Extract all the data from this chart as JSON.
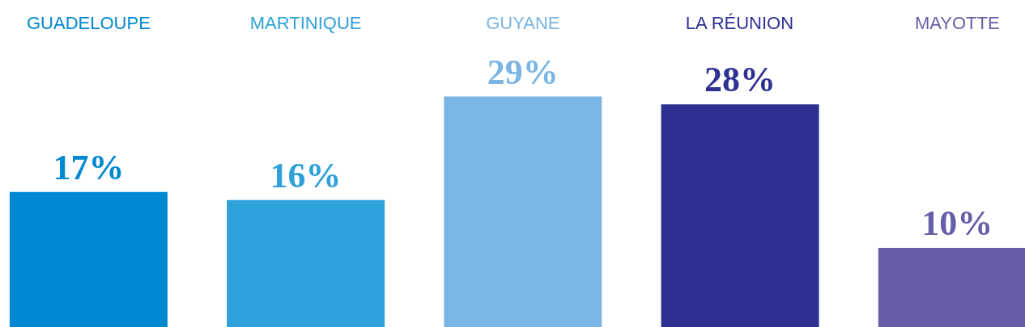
{
  "chart_data": {
    "type": "bar",
    "categories": [
      "GUADELOUPE",
      "MARTINIQUE",
      "GUYANE",
      "LA RÉUNION",
      "MAYOTTE"
    ],
    "values": [
      17,
      16,
      29,
      28,
      10
    ],
    "colors": [
      "#0088d1",
      "#2fa1da",
      "#7ab5e3",
      "#2e3192",
      "#655ea9"
    ],
    "value_labels": [
      "17%",
      "16%",
      "29%",
      "28%",
      "10%"
    ],
    "grid": false
  }
}
